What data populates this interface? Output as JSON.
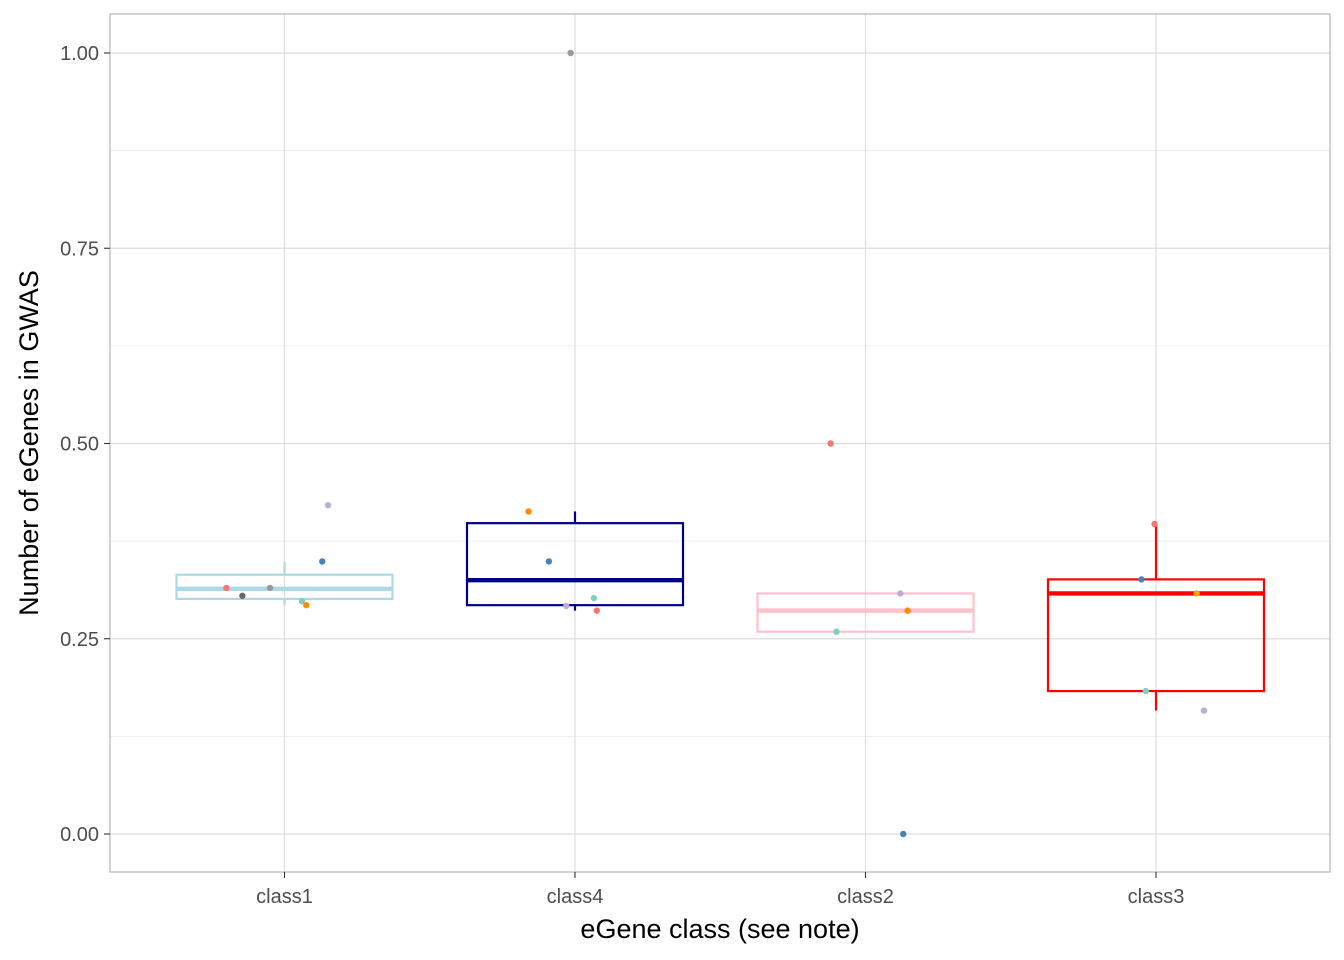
{
  "chart_data": {
    "type": "box",
    "title": "",
    "xlabel": "eGene class (see note)",
    "ylabel": "Number of eGenes in GWAS",
    "ylim": [
      -0.05,
      1.05
    ],
    "yticks": [
      "0.00",
      "0.25",
      "0.50",
      "0.75",
      "1.00"
    ],
    "ytick_values": [
      0,
      0.25,
      0.5,
      0.75,
      1.0
    ],
    "grid": true,
    "legend": "none",
    "categories": [
      "class1",
      "class4",
      "class2",
      "class3"
    ],
    "boxes": [
      {
        "category": "class1",
        "color": "#add8e6",
        "lower_whisker": 0.293,
        "q1": 0.301,
        "median": 0.314,
        "q3": 0.332,
        "upper_whisker": 0.348
      },
      {
        "category": "class4",
        "color": "#00008b",
        "lower_whisker": 0.286,
        "q1": 0.293,
        "median": 0.325,
        "q3": 0.398,
        "upper_whisker": 0.413
      },
      {
        "category": "class2",
        "color": "#ffc0cb",
        "lower_whisker": 0.259,
        "q1": 0.259,
        "median": 0.286,
        "q3": 0.308,
        "upper_whisker": 0.308
      },
      {
        "category": "class3",
        "color": "#ff0000",
        "lower_whisker": 0.158,
        "q1": 0.183,
        "median": 0.308,
        "q3": 0.326,
        "upper_whisker": 0.397
      }
    ],
    "points": [
      {
        "category": "class1",
        "jitter": -0.2,
        "y": 0.315,
        "color": "#f8766d"
      },
      {
        "category": "class1",
        "jitter": -0.145,
        "y": 0.305,
        "color": "#666666"
      },
      {
        "category": "class1",
        "jitter": -0.05,
        "y": 0.315,
        "color": "#999999"
      },
      {
        "category": "class1",
        "jitter": 0.06,
        "y": 0.298,
        "color": "#80cdc1"
      },
      {
        "category": "class1",
        "jitter": 0.075,
        "y": 0.293,
        "color": "#ff8c00"
      },
      {
        "category": "class1",
        "jitter": 0.13,
        "y": 0.349,
        "color": "#4682b4"
      },
      {
        "category": "class1",
        "jitter": 0.15,
        "y": 0.421,
        "color": "#bcaed6"
      },
      {
        "category": "class4",
        "jitter": -0.015,
        "y": 1.0,
        "color": "#999999"
      },
      {
        "category": "class4",
        "jitter": -0.16,
        "y": 0.413,
        "color": "#ff8c00"
      },
      {
        "category": "class4",
        "jitter": -0.09,
        "y": 0.349,
        "color": "#4682b4"
      },
      {
        "category": "class4",
        "jitter": -0.03,
        "y": 0.292,
        "color": "#bcaed6"
      },
      {
        "category": "class4",
        "jitter": 0.065,
        "y": 0.302,
        "color": "#80cdc1"
      },
      {
        "category": "class4",
        "jitter": 0.075,
        "y": 0.286,
        "color": "#f8766d"
      },
      {
        "category": "class2",
        "jitter": -0.12,
        "y": 0.5,
        "color": "#f8766d"
      },
      {
        "category": "class2",
        "jitter": -0.1,
        "y": 0.259,
        "color": "#80cdc1"
      },
      {
        "category": "class2",
        "jitter": 0.12,
        "y": 0.308,
        "color": "#bcaed6"
      },
      {
        "category": "class2",
        "jitter": 0.145,
        "y": 0.286,
        "color": "#ff8c00"
      },
      {
        "category": "class2",
        "jitter": 0.13,
        "y": 0.0,
        "color": "#4682b4"
      },
      {
        "category": "class3",
        "jitter": -0.05,
        "y": 0.326,
        "color": "#4682b4"
      },
      {
        "category": "class3",
        "jitter": -0.005,
        "y": 0.397,
        "color": "#f8766d"
      },
      {
        "category": "class3",
        "jitter": 0.14,
        "y": 0.308,
        "color": "#ffa500"
      },
      {
        "category": "class3",
        "jitter": -0.035,
        "y": 0.183,
        "color": "#80cdc1"
      },
      {
        "category": "class3",
        "jitter": 0.165,
        "y": 0.158,
        "color": "#bcaed6"
      }
    ]
  }
}
